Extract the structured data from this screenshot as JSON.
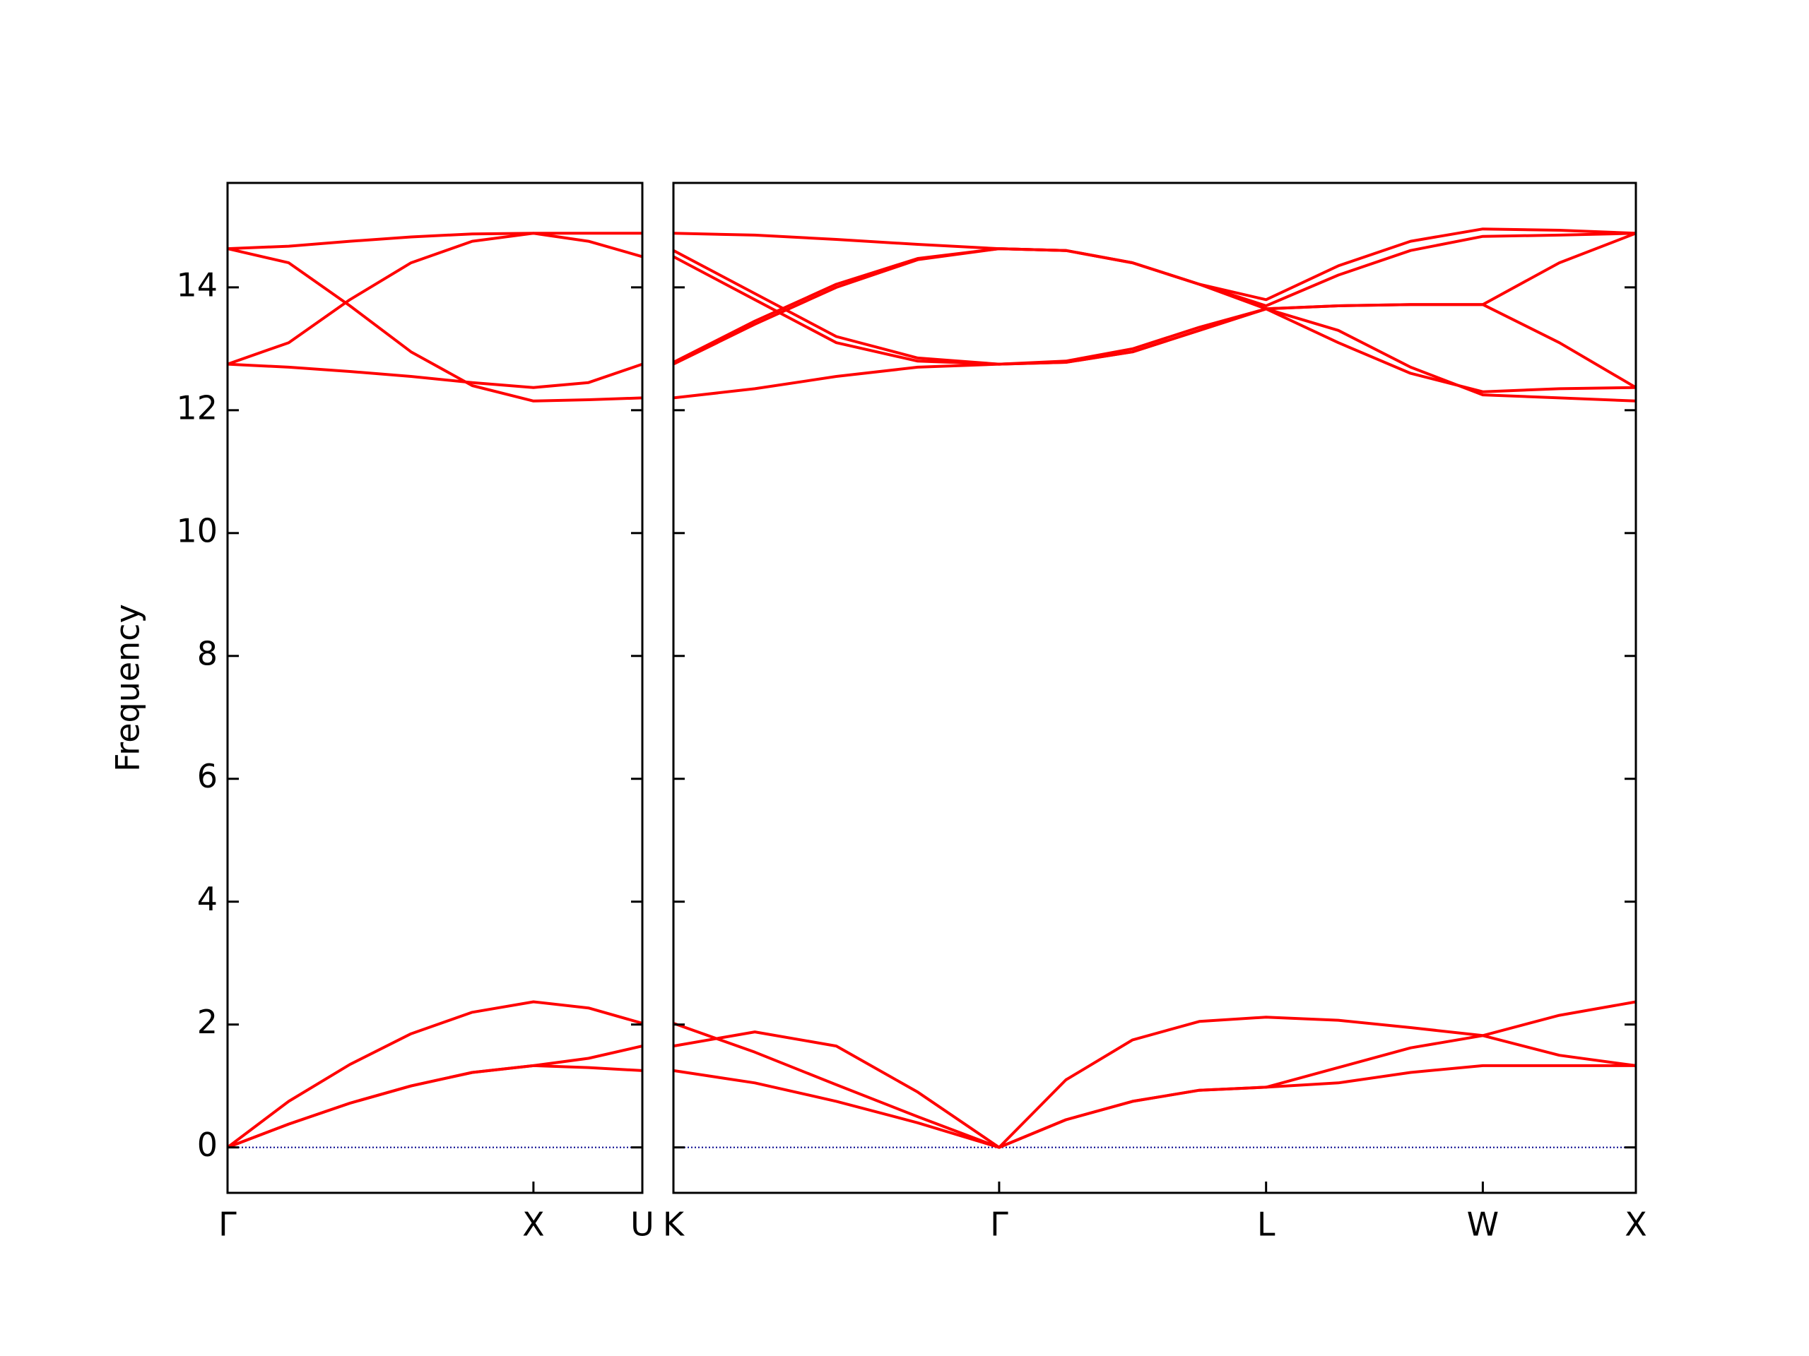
{
  "chart_data": [
    {
      "type": "line",
      "ylabel": "Frequency",
      "color": "#ff0000",
      "zero_line_color": "#00008b",
      "x": [
        0,
        0.2,
        0.4,
        0.6,
        0.8,
        1.0,
        1.18,
        1.356
      ],
      "xlim": [
        0,
        1.356
      ],
      "xticks": [
        {
          "value": 0,
          "label": "Γ"
        },
        {
          "value": 1.0,
          "label": "X"
        },
        {
          "value": 1.356,
          "label": "U"
        }
      ],
      "ylim": [
        -0.74,
        15.7
      ],
      "yticks": [
        0,
        2,
        4,
        6,
        8,
        10,
        12,
        14
      ],
      "series": [
        {
          "values": [
            0,
            0.38,
            0.72,
            1.0,
            1.22,
            1.33,
            1.3,
            1.25
          ]
        },
        {
          "values": [
            0,
            0.38,
            0.72,
            1.0,
            1.22,
            1.33,
            1.45,
            1.65
          ]
        },
        {
          "values": [
            0,
            0.75,
            1.35,
            1.85,
            2.2,
            2.37,
            2.27,
            2.02
          ]
        },
        {
          "values": [
            12.75,
            12.7,
            12.63,
            12.55,
            12.45,
            12.37,
            12.45,
            12.75
          ]
        },
        {
          "values": [
            12.75,
            13.1,
            13.8,
            14.4,
            14.75,
            14.88,
            14.75,
            14.5
          ]
        },
        {
          "values": [
            14.63,
            14.4,
            13.7,
            12.95,
            12.4,
            12.15,
            12.17,
            12.2
          ]
        },
        {
          "values": [
            14.63,
            14.67,
            14.75,
            14.82,
            14.87,
            14.88,
            14.88,
            14.88
          ]
        }
      ]
    },
    {
      "type": "line",
      "color": "#ff0000",
      "zero_line_color": "#00008b",
      "x": [
        0,
        0.266,
        0.532,
        0.798,
        1.064,
        1.282,
        1.5,
        1.718,
        1.936,
        2.172,
        2.408,
        2.644,
        2.894,
        3.144
      ],
      "xlim": [
        0,
        3.144
      ],
      "xticks": [
        {
          "value": 0,
          "label": "K"
        },
        {
          "value": 1.064,
          "label": "Γ"
        },
        {
          "value": 1.936,
          "label": "L"
        },
        {
          "value": 2.644,
          "label": "W"
        },
        {
          "value": 3.144,
          "label": "X"
        }
      ],
      "ylim": [
        -0.74,
        15.7
      ],
      "yticks": [
        0,
        2,
        4,
        6,
        8,
        10,
        12,
        14
      ],
      "series": [
        {
          "values": [
            1.25,
            1.05,
            0.75,
            0.4,
            0,
            0.45,
            0.75,
            0.93,
            0.98,
            1.05,
            1.22,
            1.33,
            1.33,
            1.33
          ]
        },
        {
          "values": [
            1.65,
            1.88,
            1.65,
            0.9,
            0,
            0.45,
            0.75,
            0.93,
            0.98,
            1.3,
            1.62,
            1.82,
            1.5,
            1.33
          ]
        },
        {
          "values": [
            2.02,
            1.55,
            1.02,
            0.5,
            0,
            1.1,
            1.75,
            2.05,
            2.12,
            2.07,
            1.95,
            1.82,
            2.15,
            2.37
          ]
        },
        {
          "values": [
            12.2,
            12.35,
            12.55,
            12.7,
            12.75,
            12.8,
            13.0,
            13.35,
            13.65,
            13.3,
            12.7,
            12.25,
            12.2,
            12.15
          ]
        },
        {
          "values": [
            12.75,
            13.4,
            14.0,
            14.45,
            14.63,
            14.6,
            14.4,
            14.05,
            13.8,
            14.35,
            14.75,
            14.95,
            14.93,
            14.88
          ]
        },
        {
          "values": [
            12.78,
            13.45,
            14.05,
            14.47,
            14.63,
            14.6,
            14.4,
            14.05,
            13.7,
            14.2,
            14.6,
            14.83,
            14.85,
            14.88
          ]
        },
        {
          "values": [
            14.5,
            13.8,
            13.1,
            12.8,
            12.75,
            12.78,
            12.95,
            13.3,
            13.65,
            13.7,
            13.72,
            13.72,
            13.1,
            12.37
          ]
        },
        {
          "values": [
            14.6,
            13.9,
            13.2,
            12.85,
            12.75,
            12.78,
            12.95,
            13.3,
            13.65,
            13.1,
            12.6,
            12.3,
            12.35,
            12.37
          ]
        },
        {
          "values": [
            14.88,
            14.85,
            14.78,
            14.7,
            14.63,
            14.6,
            14.4,
            14.05,
            13.65,
            13.7,
            13.72,
            13.72,
            14.4,
            14.88
          ]
        }
      ]
    }
  ]
}
